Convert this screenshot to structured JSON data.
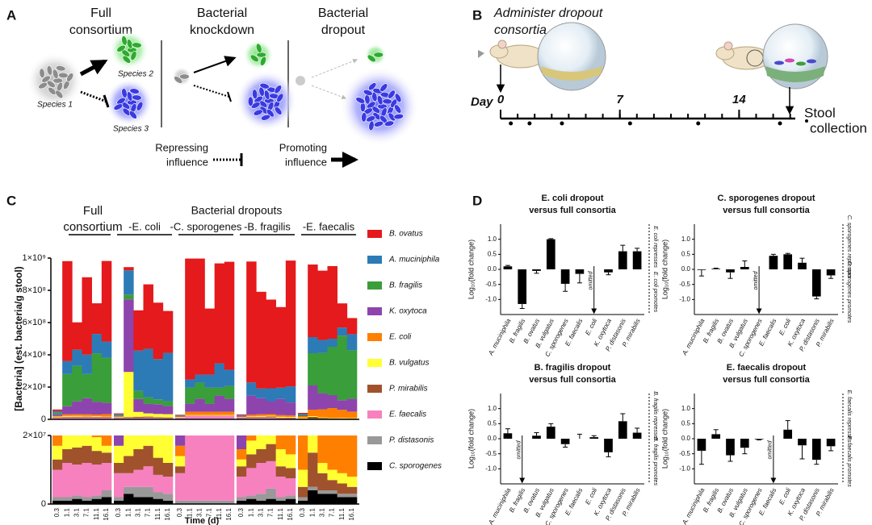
{
  "panel_labels": [
    "A",
    "B",
    "C",
    "D"
  ],
  "panel_a": {
    "columns": [
      [
        "Full",
        "consortium"
      ],
      [
        "Bacterial",
        "knockdown"
      ],
      [
        "Bacterial",
        "dropout"
      ]
    ],
    "species": [
      "Species 1",
      "Species 2",
      "Species 3"
    ],
    "repressing": [
      "Repressing",
      "influence"
    ],
    "promoting": [
      "Promoting",
      "influence"
    ]
  },
  "panel_b": {
    "title": [
      "Administer dropout",
      "consortia"
    ],
    "day_label": "Day",
    "days": [
      0,
      7,
      14
    ],
    "collection": [
      "Stool",
      "collection"
    ]
  },
  "chart_data": [
    {
      "type": "stacked_bar",
      "group_title": "Bacterial dropouts",
      "group_labels": [
        [
          "Full",
          "consortium"
        ],
        [
          "-E. coli"
        ],
        [
          "-C. sporogenes"
        ],
        [
          "-B. fragilis"
        ],
        [
          "-E. faecalis"
        ]
      ],
      "xlabel": "Time (d)",
      "ylabel": "[Bacteria] (est. bacteria/g stool)",
      "categories": [
        "0.3",
        "1.1",
        "3.1",
        "7.1",
        "11.1",
        "16.1",
        "0.3",
        "1.1",
        "3.1",
        "7.1",
        "11.1",
        "16.1",
        "0.3",
        "1.1",
        "3.1",
        "7.1",
        "11.1",
        "16.1",
        "0.3",
        "1.1",
        "3.1",
        "7.1",
        "11.1",
        "16.1",
        "0.3",
        "1.1",
        "3.1",
        "7.1",
        "11.1",
        "16.1"
      ],
      "ylim": [
        0,
        1000000000.0
      ],
      "yticks": [
        0,
        {
          "value": 200000000.0,
          "label": "2×10⁸"
        },
        {
          "value": 400000000.0,
          "label": "4×10⁸"
        },
        {
          "value": 600000000.0,
          "label": "6×10⁸"
        },
        {
          "value": 800000000.0,
          "label": "8×10⁸"
        },
        {
          "value": 1000000000.0,
          "label": "1×10⁹"
        }
      ],
      "inset_ylim": [
        0,
        20000000.0
      ],
      "inset_yticks": [
        0,
        {
          "value": 20000000.0,
          "label": "2×10⁷"
        }
      ],
      "series": [
        {
          "name": "B. ovatus",
          "color": "#e41a1c",
          "values": [
            10000000.0,
            620000000.0,
            170000000.0,
            480000000.0,
            190000000.0,
            500000000.0,
            5000000.0,
            20000000.0,
            250000000.0,
            400000000.0,
            350000000.0,
            260000000.0,
            3000000.0,
            750000000.0,
            720000000.0,
            410000000.0,
            620000000.0,
            670000000.0,
            5000000.0,
            750000000.0,
            600000000.0,
            550000000.0,
            500000000.0,
            780000000.0,
            5000000.0,
            450000000.0,
            430000000.0,
            450000000.0,
            150000000.0,
            100000000.0
          ]
        },
        {
          "name": "A. muciniphila",
          "color": "#2c7bb6",
          "values": [
            10000000.0,
            80000000.0,
            100000000.0,
            120000000.0,
            120000000.0,
            100000000.0,
            5000000.0,
            150000000.0,
            250000000.0,
            300000000.0,
            250000000.0,
            300000000.0,
            3000000.0,
            50000000.0,
            50000000.0,
            80000000.0,
            150000000.0,
            100000000.0,
            5000000.0,
            80000000.0,
            60000000.0,
            80000000.0,
            70000000.0,
            100000000.0,
            5000000.0,
            100000000.0,
            80000000.0,
            50000000.0,
            50000000.0,
            100000000.0
          ]
        },
        {
          "name": "B. fragilis",
          "color": "#3a9e3a",
          "values": [
            10000000.0,
            200000000.0,
            220000000.0,
            150000000.0,
            300000000.0,
            280000000.0,
            5000000.0,
            30000000.0,
            50000000.0,
            40000000.0,
            30000000.0,
            30000000.0,
            3000000.0,
            100000000.0,
            100000000.0,
            100000000.0,
            50000000.0,
            80000000.0,
            0,
            0,
            0,
            0,
            0,
            0,
            5000000.0,
            200000000.0,
            250000000.0,
            300000000.0,
            400000000.0,
            300000000.0
          ]
        },
        {
          "name": "K. oxytoca",
          "color": "#8e44ad",
          "values": [
            10000000.0,
            50000000.0,
            80000000.0,
            100000000.0,
            80000000.0,
            70000000.0,
            5000000.0,
            450000000.0,
            80000000.0,
            60000000.0,
            60000000.0,
            50000000.0,
            3000000.0,
            50000000.0,
            80000000.0,
            50000000.0,
            100000000.0,
            80000000.0,
            5000000.0,
            120000000.0,
            100000000.0,
            80000000.0,
            100000000.0,
            80000000.0,
            5000000.0,
            150000000.0,
            100000000.0,
            80000000.0,
            60000000.0,
            80000000.0
          ]
        },
        {
          "name": "E. coli",
          "color": "#ff7f00",
          "values": [
            4000000.0,
            10000000.0,
            10000000.0,
            10000000.0,
            10000000.0,
            15000000.0,
            0,
            0,
            0,
            0,
            0,
            0,
            3000000.0,
            20000000.0,
            20000000.0,
            20000000.0,
            20000000.0,
            20000000.0,
            3000000.0,
            10000000.0,
            10000000.0,
            10000000.0,
            10000000.0,
            10000000.0,
            10000000.0,
            40000000.0,
            50000000.0,
            60000000.0,
            50000000.0,
            40000000.0
          ]
        },
        {
          "name": "B. vulgatus",
          "color": "#ffff33",
          "values": [
            4000000.0,
            5000000.0,
            5000000.0,
            4000000.0,
            4000000.0,
            2000000.0,
            5000000.0,
            280000000.0,
            30000000.0,
            20000000.0,
            20000000.0,
            20000000.0,
            3000000.0,
            3000000.0,
            3000000.0,
            3000000.0,
            3000000.0,
            3000000.0,
            2000000.0,
            4000000.0,
            5000000.0,
            5000000.0,
            5000000.0,
            4000000.0,
            5000000.0,
            5000000.0,
            3000000.0,
            3000000.0,
            3000000.0,
            3000000.0
          ]
        },
        {
          "name": "P. mirabilis",
          "color": "#a0522d",
          "values": [
            3000000.0,
            4000000.0,
            5000000.0,
            5000000.0,
            4000000.0,
            3000000.0,
            3000000.0,
            5000000.0,
            6000000.0,
            6000000.0,
            5000000.0,
            4000000.0,
            2000000.0,
            1000000.0,
            1000000.0,
            1000000.0,
            1000000.0,
            1000000.0,
            3000000.0,
            4000000.0,
            4000000.0,
            5000000.0,
            3000000.0,
            3000000.0,
            3000000.0,
            10000000.0,
            5000000.0,
            3000000.0,
            3000000.0,
            2000000.0
          ]
        },
        {
          "name": "E. faecalis",
          "color": "#f781bf",
          "values": [
            8000000.0,
            10000000.0,
            9000000.0,
            10000000.0,
            9000000.0,
            8000000.0,
            7000000.0,
            4000000.0,
            5000000.0,
            6000000.0,
            5000000.0,
            5000000.0,
            8000000.0,
            22000000.0,
            22000000.0,
            22000000.0,
            22000000.0,
            22000000.0,
            6000000.0,
            8000000.0,
            9000000.0,
            8000000.0,
            6000000.0,
            5000000.0,
            0,
            0,
            0,
            0,
            0,
            0
          ]
        },
        {
          "name": "P. distasonis",
          "color": "#999999",
          "values": [
            1000000.0,
            1000000.0,
            1000000.0,
            1000000.0,
            1000000.0,
            2000000.0,
            1000000.0,
            2000000.0,
            3000000.0,
            3000000.0,
            2000000.0,
            2000000.0,
            1000000.0,
            1000000.0,
            1000000.0,
            1000000.0,
            1000000.0,
            1000000.0,
            1000000.0,
            1000000.0,
            2000000.0,
            3000000.0,
            1000000.0,
            1000000.0,
            1000000.0,
            1000000.0,
            1000000.0,
            1000000.0,
            1000000.0,
            1000000.0
          ]
        },
        {
          "name": "C. sporogenes",
          "color": "#000000",
          "values": [
            1000000.0,
            1000000.0,
            1500000.0,
            1000000.0,
            1500000.0,
            2000000.0,
            1000000.0,
            3000000.0,
            2000000.0,
            2000000.0,
            1500000.0,
            1000000.0,
            0,
            0,
            0,
            0,
            0,
            0,
            1000000.0,
            1500000.0,
            1000000.0,
            1500000.0,
            1000000.0,
            1500000.0,
            1000000.0,
            4000000.0,
            3000000.0,
            3000000.0,
            2000000.0,
            2000000.0
          ]
        }
      ]
    },
    {
      "type": "bar",
      "title": "E. coli dropout",
      "subtitle": "versus full consortia",
      "ylabel": "Log₁₀(fold change)",
      "color": "#000000",
      "categories": [
        "A. muciniphila",
        "B. fragilis",
        "B. ovatus",
        "B. vulgatus",
        "C. sporogenes",
        "E. faecalis",
        "E. coli",
        "K. oxytoca",
        "P. distasonis",
        "P. mirabilis"
      ],
      "values": [
        0.1,
        -1.15,
        -0.05,
        1.0,
        -0.48,
        -0.15,
        null,
        -0.1,
        0.6,
        0.6
      ],
      "errors": [
        0.03,
        0.15,
        0.08,
        0.02,
        0.25,
        0.3,
        null,
        0.08,
        0.2,
        0.1
      ],
      "annotation": "omitted",
      "notes": [
        "E. coli represses",
        "E. coli promotes"
      ],
      "ylim": [
        -1.5,
        1.5
      ],
      "yticks": [
        {
          "value": 1,
          "label": "1.0"
        },
        {
          "value": 0.5,
          "label": "0.5"
        },
        {
          "value": 0,
          "label": "0.0"
        },
        {
          "value": -0.5,
          "label": "-0.5"
        },
        {
          "value": -1,
          "label": "-1.0"
        }
      ]
    },
    {
      "type": "bar",
      "title": "C. sporogenes dropout",
      "subtitle": "versus full consortia",
      "ylabel": "Log₁₀(fold change)",
      "color": "#000000",
      "categories": [
        "A. muciniphila",
        "B. fragilis",
        "B. ovatus",
        "B. vulgatus",
        "C. sporogenes",
        "E. faecalis",
        "E. coli",
        "K. oxytoca",
        "P. distasonis",
        "P. mirabilis"
      ],
      "values": [
        -0.02,
        0.02,
        -0.1,
        0.08,
        null,
        0.45,
        0.5,
        0.22,
        -0.9,
        -0.2
      ],
      "errors": [
        0.2,
        0.02,
        0.2,
        0.2,
        null,
        0.05,
        0.03,
        0.15,
        0.08,
        0.1
      ],
      "annotation": "omitted",
      "notes": [
        "C. sporogenes represses",
        "C. sporogenes promotes"
      ],
      "ylim": [
        -1.5,
        1.5
      ],
      "yticks": [
        {
          "value": 1,
          "label": "1.0"
        },
        {
          "value": 0.5,
          "label": "0.5"
        },
        {
          "value": 0,
          "label": "0.0"
        },
        {
          "value": -0.5,
          "label": "-0.5"
        },
        {
          "value": -1,
          "label": "-1.0"
        }
      ]
    },
    {
      "type": "bar",
      "title": "B. fragilis dropout",
      "subtitle": "versus full consortia",
      "ylabel": "Log₁₀(fold change)",
      "color": "#000000",
      "categories": [
        "A. muciniphila",
        "B. fragilis",
        "B. ovatus",
        "B. vulgatus",
        "C. sporogenes",
        "E. faecalis",
        "E. coli",
        "K. oxytoca",
        "P. distasonis",
        "P. mirabilis"
      ],
      "values": [
        0.18,
        null,
        0.1,
        0.4,
        -0.18,
        0,
        0.05,
        -0.45,
        0.58,
        0.2
      ],
      "errors": [
        0.15,
        null,
        0.1,
        0.1,
        0.1,
        0.15,
        0.05,
        0.15,
        0.25,
        0.15
      ],
      "annotation": "omitted",
      "notes": [
        "B. fragilis represses",
        "B. fragilis promotes"
      ],
      "ylim": [
        -1.5,
        1.5
      ],
      "yticks": [
        {
          "value": 1,
          "label": "1.0"
        },
        {
          "value": 0.5,
          "label": "0.5"
        },
        {
          "value": 0,
          "label": "0.0"
        },
        {
          "value": -0.5,
          "label": "-0.5"
        },
        {
          "value": -1,
          "label": "-1.0"
        }
      ]
    },
    {
      "type": "bar",
      "title": "E. faecalis dropout",
      "subtitle": "versus full consortia",
      "ylabel": "Log₁₀(fold change)",
      "color": "#000000",
      "categories": [
        "A. muciniphila",
        "B. fragilis",
        "B. ovatus",
        "B. vulgatus",
        "C. sporogenes",
        "E. faecalis",
        "E. coli",
        "K. oxytoca",
        "P. distasonis",
        "P. mirabilis"
      ],
      "values": [
        -0.4,
        0.15,
        -0.55,
        -0.3,
        -0.02,
        null,
        0.3,
        -0.22,
        -0.7,
        -0.25
      ],
      "errors": [
        0.45,
        0.15,
        0.2,
        0.2,
        0.02,
        null,
        0.3,
        0.45,
        0.15,
        0.15
      ],
      "annotation": "omitted",
      "notes": [
        "E. faecalis represses",
        "E. faecalis promotes"
      ],
      "ylim": [
        -1.5,
        1.5
      ],
      "yticks": [
        {
          "value": 1,
          "label": "1.0"
        },
        {
          "value": 0.5,
          "label": "0.5"
        },
        {
          "value": 0,
          "label": "0.0"
        },
        {
          "value": -0.5,
          "label": "-0.5"
        },
        {
          "value": -1,
          "label": "-1.0"
        }
      ]
    }
  ]
}
